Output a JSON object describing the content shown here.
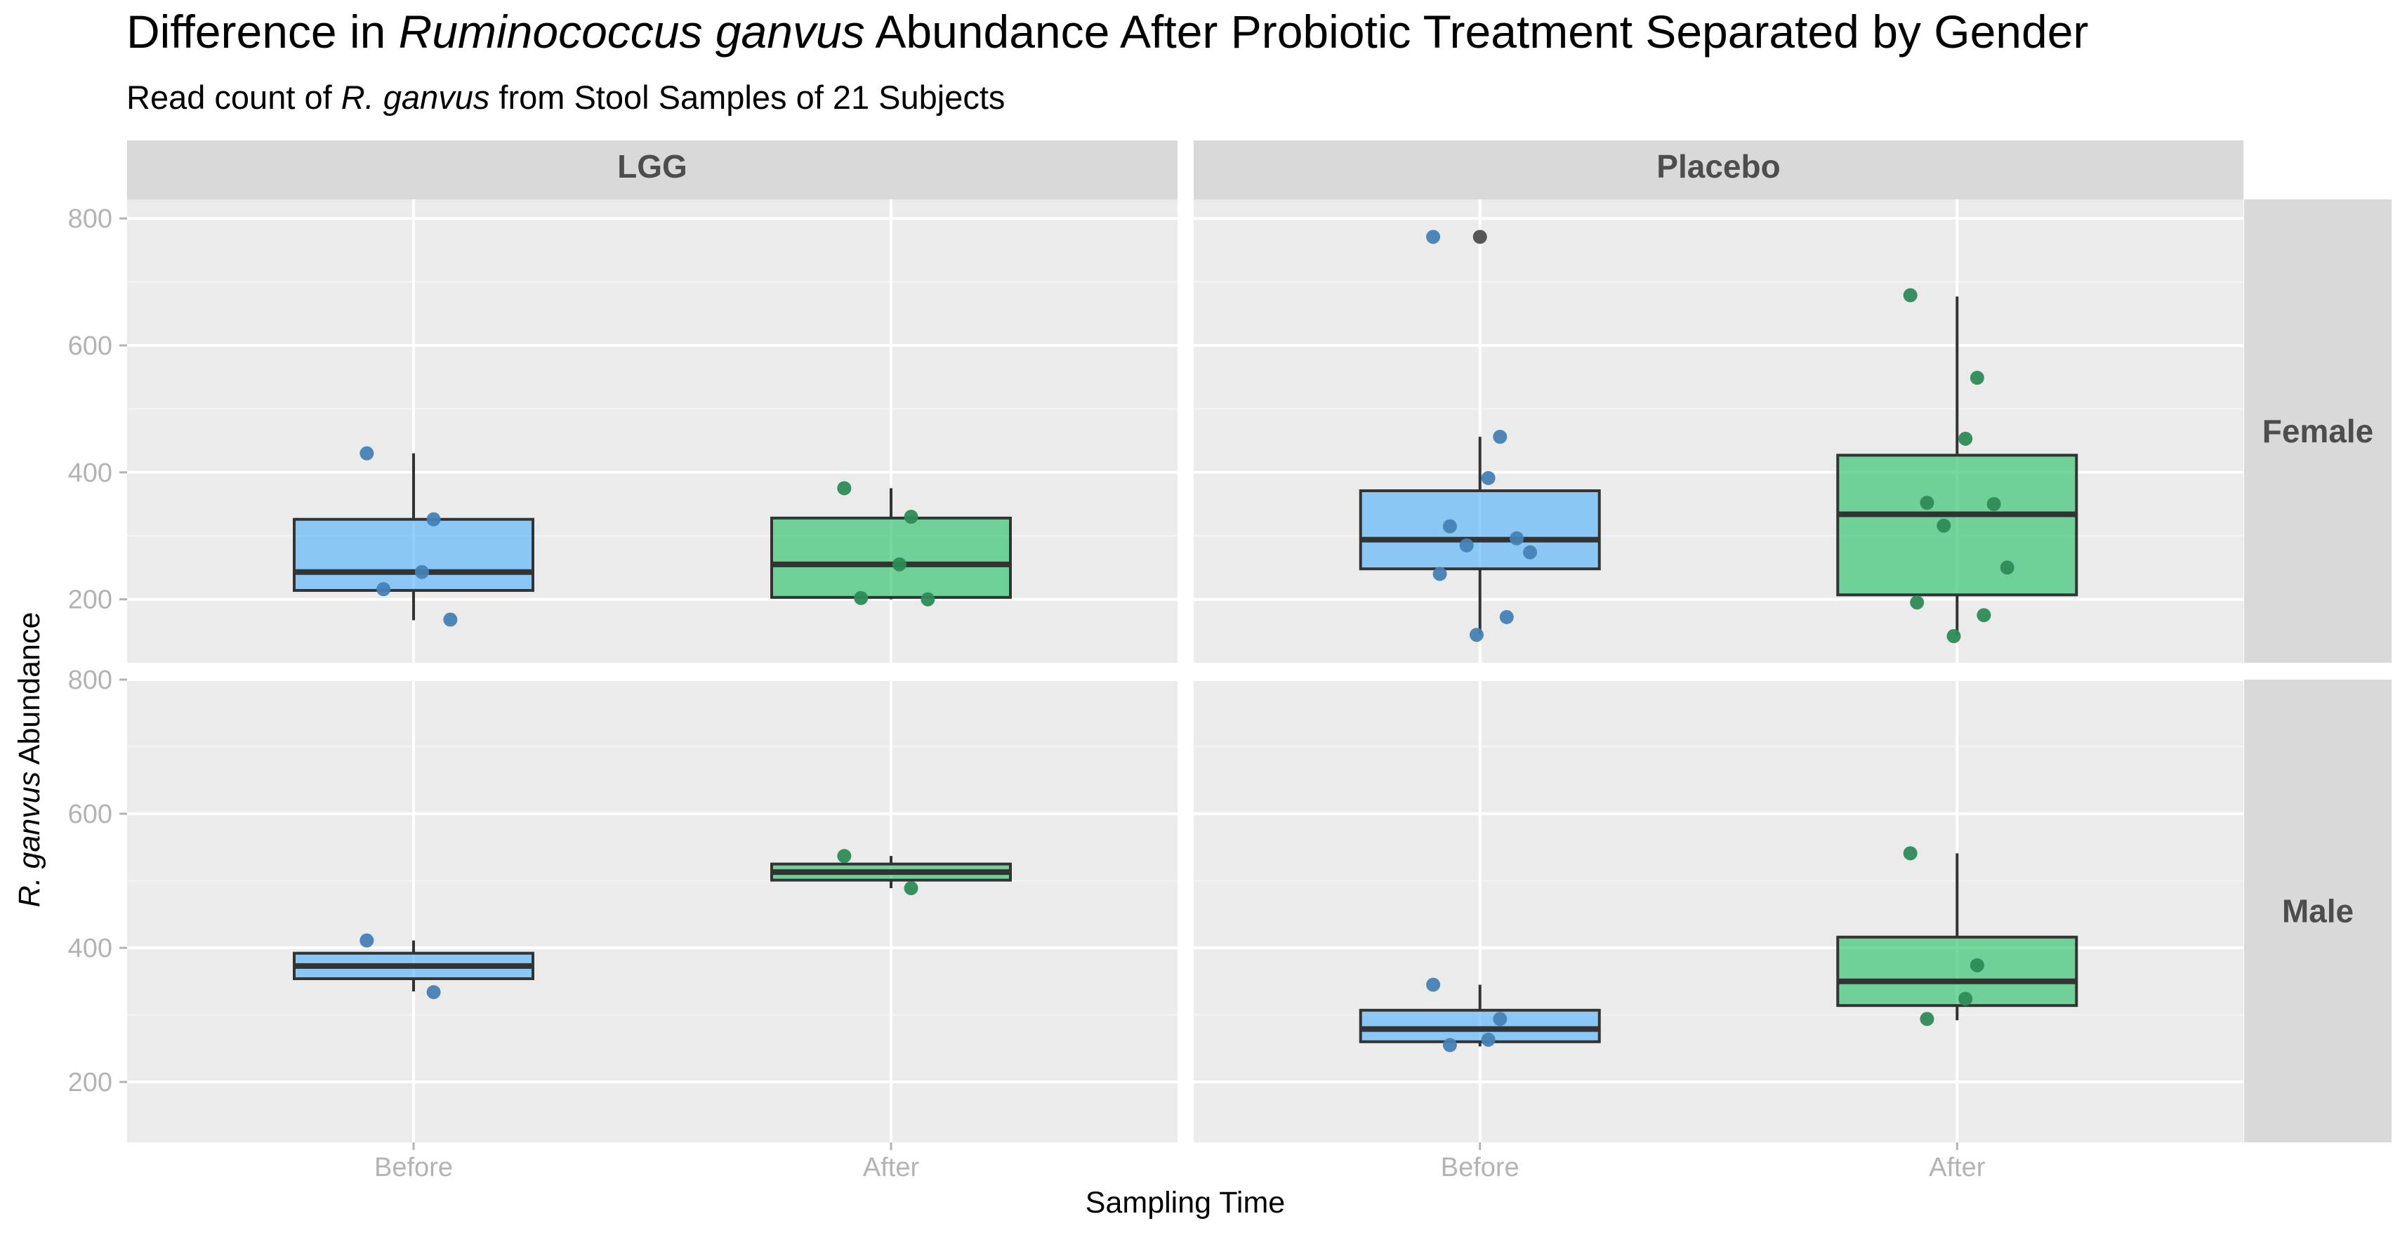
{
  "title": {
    "pre": "Difference in ",
    "italic": "Ruminococcus ganvus",
    "post": " Abundance After Probiotic Treatment Separated by Gender"
  },
  "subtitle": {
    "pre": "Read count of ",
    "italic": "R. ganvus",
    "post": " from Stool Samples of 21 Subjects"
  },
  "chart_data": {
    "type": "box",
    "xlabel": "Sampling Time",
    "ylabel": {
      "italic": "R. ganvus",
      "post": " Abundance"
    },
    "categories": [
      "Before",
      "After"
    ],
    "columns": [
      "LGG",
      "Placebo"
    ],
    "rows": [
      "Female",
      "Male"
    ],
    "yticks": [
      200,
      400,
      600,
      800
    ],
    "ylim_female": [
      100,
      830
    ],
    "ylim_male": [
      110,
      800
    ],
    "colors": {
      "Before": "#56B4F9",
      "After": "#2CC36A",
      "point_before": "#4682B4",
      "point_after": "#2E8B57",
      "outlier": "#555555"
    },
    "panels": [
      {
        "column": "LGG",
        "row": "Female",
        "boxes": [
          {
            "category": "Before",
            "q1": 214,
            "median": 243,
            "q3": 326,
            "whisker_low": 167,
            "whisker_high": 430,
            "outliers": [],
            "points": [
              430,
              326,
              243,
              216,
              168
            ]
          },
          {
            "category": "After",
            "q1": 203,
            "median": 255,
            "q3": 328,
            "whisker_low": 200,
            "whisker_high": 375,
            "outliers": [],
            "points": [
              375,
              330,
              255,
              202,
              200
            ]
          }
        ]
      },
      {
        "column": "Placebo",
        "row": "Female",
        "boxes": [
          {
            "category": "Before",
            "q1": 248,
            "median": 294,
            "q3": 371,
            "whisker_low": 145,
            "whisker_high": 456,
            "outliers": [
              771
            ],
            "points": [
              771,
              456,
              391,
              315,
              296,
              285,
              274,
              240,
              172,
              144
            ]
          },
          {
            "category": "After",
            "q1": 207,
            "median": 334,
            "q3": 427,
            "whisker_low": 143,
            "whisker_high": 677,
            "outliers": [],
            "points": [
              679,
              549,
              453,
              352,
              350,
              316,
              250,
              195,
              175,
              142
            ]
          }
        ]
      },
      {
        "column": "LGG",
        "row": "Male",
        "boxes": [
          {
            "category": "Before",
            "q1": 354,
            "median": 373,
            "q3": 392,
            "whisker_low": 335,
            "whisker_high": 411,
            "outliers": [],
            "points": [
              411,
              334
            ]
          },
          {
            "category": "After",
            "q1": 501,
            "median": 513,
            "q3": 525,
            "whisker_low": 489,
            "whisker_high": 537,
            "outliers": [],
            "points": [
              537,
              489
            ]
          }
        ]
      },
      {
        "column": "Placebo",
        "row": "Male",
        "boxes": [
          {
            "category": "Before",
            "q1": 260,
            "median": 279,
            "q3": 307,
            "whisker_low": 253,
            "whisker_high": 345,
            "outliers": [],
            "points": [
              345,
              294,
              263,
              255
            ]
          },
          {
            "category": "After",
            "q1": 314,
            "median": 350,
            "q3": 416,
            "whisker_low": 292,
            "whisker_high": 541,
            "outliers": [],
            "points": [
              541,
              374,
              324,
              294
            ]
          }
        ]
      }
    ]
  }
}
